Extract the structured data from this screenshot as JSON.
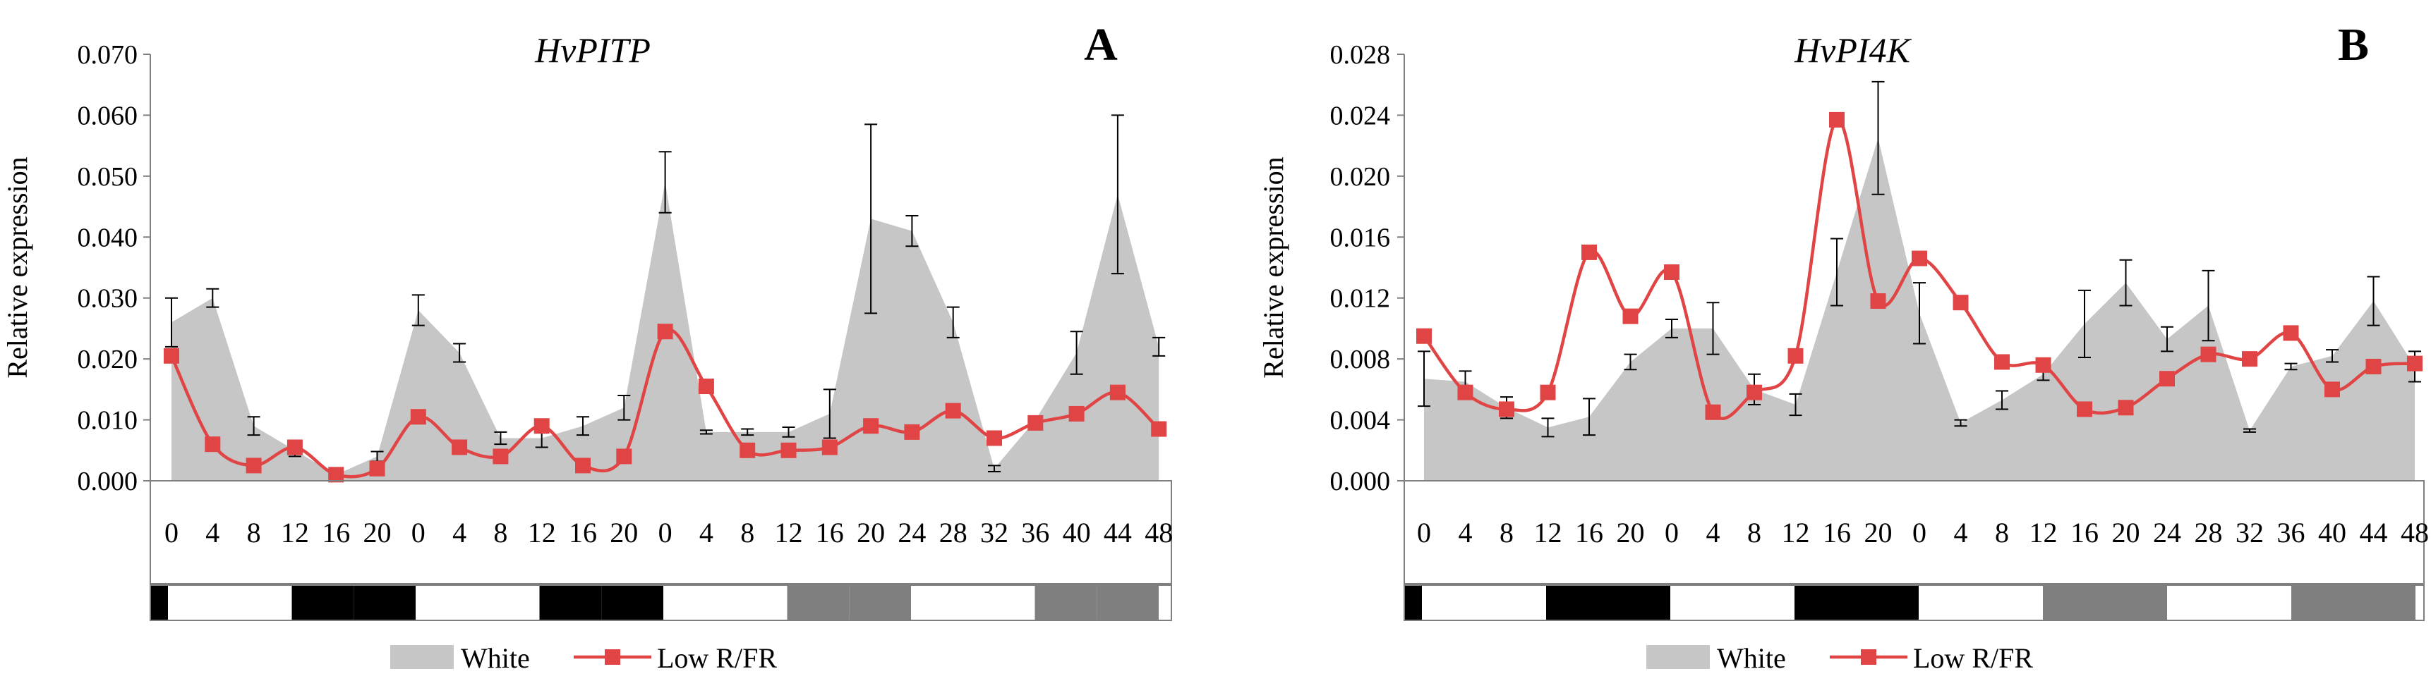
{
  "chart_data": [
    {
      "type": "area+line",
      "title": "HvPITP",
      "panel_label": "A",
      "ylabel": "Relative expression",
      "ylim": [
        0,
        0.07
      ],
      "yticks": [
        "0.000",
        "0.010",
        "0.020",
        "0.030",
        "0.040",
        "0.050",
        "0.060",
        "0.070"
      ],
      "categories": [
        "0",
        "4",
        "8",
        "12",
        "16",
        "20",
        "0",
        "4",
        "8",
        "12",
        "16",
        "20",
        "0",
        "4",
        "8",
        "12",
        "16",
        "20",
        "24",
        "28",
        "32",
        "36",
        "40",
        "44",
        "48"
      ],
      "series": [
        {
          "name": "White",
          "style": "area",
          "color": "#c6c6c6",
          "values": [
            0.026,
            0.03,
            0.009,
            0.005,
            0.001,
            0.004,
            0.028,
            0.021,
            0.007,
            0.007,
            0.009,
            0.012,
            0.049,
            0.008,
            0.008,
            0.008,
            0.011,
            0.043,
            0.041,
            0.026,
            0.002,
            0.01,
            0.021,
            0.047,
            0.022
          ],
          "errors": [
            0.004,
            0.0015,
            0.0015,
            0.001,
            0.0003,
            0.0008,
            0.0025,
            0.0015,
            0.001,
            0.0015,
            0.0015,
            0.002,
            0.005,
            0.0003,
            0.0005,
            0.0008,
            0.004,
            0.0155,
            0.0025,
            0.0025,
            0.0005,
            0.0005,
            0.0035,
            0.013,
            0.0015
          ]
        },
        {
          "name": "Low R/FR",
          "style": "line",
          "color": "#e04444",
          "values": [
            0.0205,
            0.006,
            0.0025,
            0.0055,
            0.001,
            0.002,
            0.0105,
            0.0055,
            0.004,
            0.009,
            0.0025,
            0.004,
            0.0245,
            0.0155,
            0.005,
            0.005,
            0.0055,
            0.009,
            0.008,
            0.0115,
            0.007,
            0.0095,
            0.011,
            0.0145,
            0.0085
          ]
        }
      ],
      "light_bar": [
        "black",
        "white",
        "white",
        "black",
        "black",
        "white",
        "white",
        "black",
        "black",
        "white",
        "white",
        "gray",
        "gray",
        "white",
        "white",
        "gray",
        "gray"
      ]
    },
    {
      "type": "area+line",
      "title": "HvPI4K",
      "panel_label": "B",
      "ylabel": "Relative expression",
      "ylim": [
        0,
        0.028
      ],
      "yticks": [
        "0.000",
        "0.004",
        "0.008",
        "0.012",
        "0.016",
        "0.020",
        "0.024",
        "0.028"
      ],
      "categories": [
        "0",
        "4",
        "8",
        "12",
        "16",
        "20",
        "0",
        "4",
        "8",
        "12",
        "16",
        "20",
        "0",
        "4",
        "8",
        "12",
        "16",
        "20",
        "24",
        "28",
        "32",
        "36",
        "40",
        "44",
        "48"
      ],
      "series": [
        {
          "name": "White",
          "style": "area",
          "color": "#c6c6c6",
          "values": [
            0.0067,
            0.0065,
            0.0048,
            0.0035,
            0.0042,
            0.0078,
            0.01,
            0.01,
            0.006,
            0.005,
            0.0137,
            0.0225,
            0.011,
            0.0038,
            0.0053,
            0.007,
            0.0103,
            0.013,
            0.0093,
            0.0115,
            0.0033,
            0.0075,
            0.0082,
            0.0118,
            0.0075
          ],
          "errors": [
            0.0018,
            0.0007,
            0.0007,
            0.0006,
            0.0012,
            0.0005,
            0.0006,
            0.0017,
            0.001,
            0.0007,
            0.0022,
            0.0037,
            0.002,
            0.0002,
            0.0006,
            0.0004,
            0.0022,
            0.0015,
            0.0008,
            0.0023,
            0.0001,
            0.0002,
            0.0004,
            0.0016,
            0.001
          ]
        },
        {
          "name": "Low R/FR",
          "style": "line",
          "color": "#e04444",
          "values": [
            0.0095,
            0.0058,
            0.0047,
            0.0058,
            0.015,
            0.0108,
            0.0137,
            0.0045,
            0.0058,
            0.0082,
            0.0237,
            0.0118,
            0.0146,
            0.0117,
            0.0078,
            0.0076,
            0.0047,
            0.0048,
            0.0067,
            0.0083,
            0.008,
            0.0097,
            0.006,
            0.0075,
            0.0077
          ]
        }
      ],
      "light_bar": [
        "black",
        "white",
        "white",
        "black",
        "black",
        "white",
        "white",
        "black",
        "black",
        "white",
        "white",
        "gray",
        "gray",
        "white",
        "white",
        "gray",
        "gray"
      ]
    }
  ]
}
